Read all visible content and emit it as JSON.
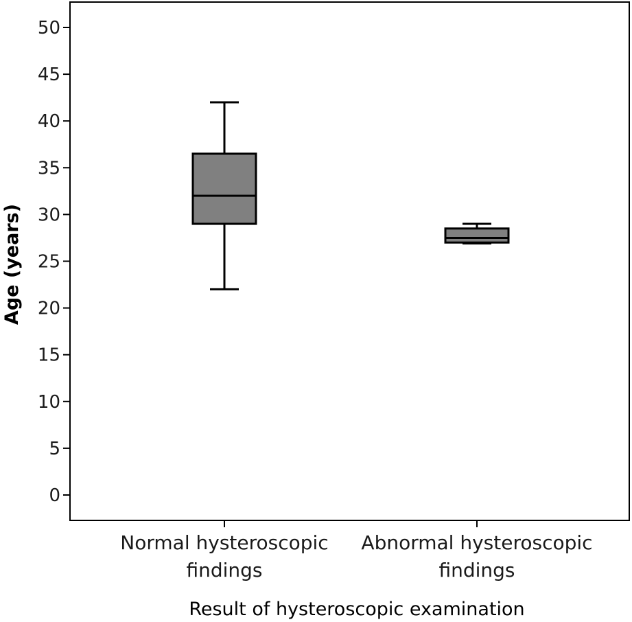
{
  "chart_data": {
    "type": "box",
    "title": "",
    "xlabel": "Result of hysteroscopic examination",
    "ylabel": "Age (years)",
    "ylim": [
      0,
      50
    ],
    "y_ticks": [
      0,
      5,
      10,
      15,
      20,
      25,
      30,
      35,
      40,
      45,
      50
    ],
    "y_tick_labels": [
      "0",
      "5",
      "10",
      "15",
      "20",
      "25",
      "30",
      "35",
      "40",
      "45",
      "50"
    ],
    "grid": false,
    "categories": [
      {
        "lines": [
          "Normal hysteroscopic",
          "findings"
        ]
      },
      {
        "lines": [
          "Abnormal hysteroscopic",
          "findings"
        ]
      }
    ],
    "boxes": [
      {
        "min": 22,
        "q1": 29,
        "median": 32,
        "q3": 36.5,
        "max": 42
      },
      {
        "min": 26.9,
        "q1": 27,
        "median": 27.5,
        "q3": 28.5,
        "max": 29
      }
    ],
    "colors": {
      "box_fill": "#808080",
      "stroke": "#000000"
    }
  }
}
